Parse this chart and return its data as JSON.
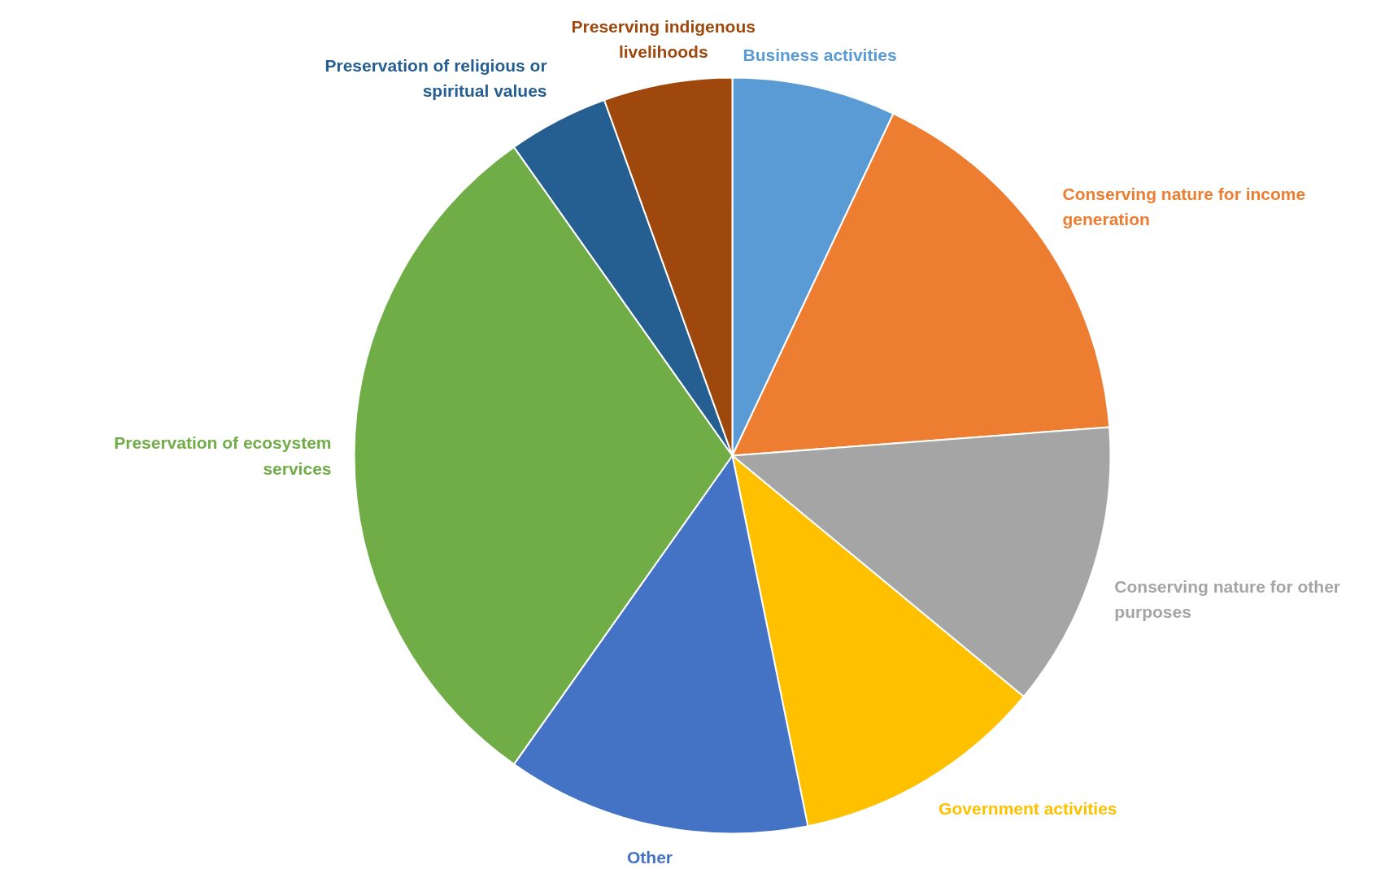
{
  "chart_data": {
    "type": "pie",
    "categories": [
      "Business activities",
      "Conserving nature for income generation",
      "Conserving nature for other purposes",
      "Government activities",
      "Other",
      "Preservation of ecosystem services",
      "Preservation of religious or spiritual values",
      "Preserving indigenous livelihoods"
    ],
    "values": [
      7,
      16.8,
      12.2,
      10.8,
      13,
      30.4,
      4.3,
      5.5
    ],
    "colors": [
      "#5b9bd5",
      "#ed7d31",
      "#a5a5a5",
      "#ffc000",
      "#4472c4",
      "#70ad47",
      "#255e91",
      "#9e480e"
    ]
  }
}
